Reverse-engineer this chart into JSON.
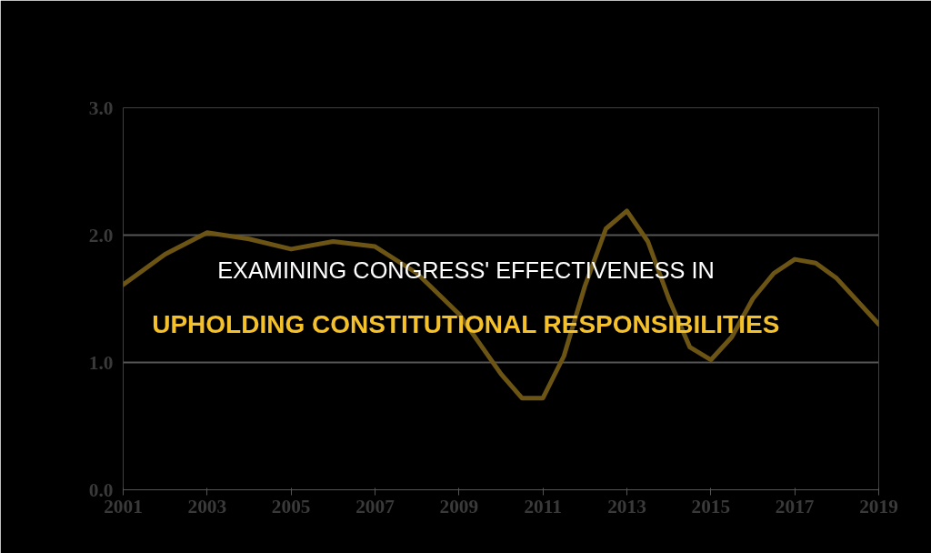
{
  "chart_data": {
    "type": "line",
    "title": "EXAMINING CONGRESS' EFFECTIVENESS IN",
    "subtitle": "UPHOLDING CONSTITUTIONAL RESPONSIBILITIES",
    "x": [
      2001,
      2002,
      2003,
      2004,
      2005,
      2006,
      2007,
      2008,
      2009,
      2010,
      2010.5,
      2011,
      2011.5,
      2012,
      2012.5,
      2013,
      2013.5,
      2014,
      2014.5,
      2015,
      2015.5,
      2016,
      2016.5,
      2017,
      2017.5,
      2018,
      2019
    ],
    "series": [
      {
        "color": "#6b5414",
        "values": [
          1.61,
          1.85,
          2.02,
          1.97,
          1.89,
          1.95,
          1.91,
          1.7,
          1.38,
          0.91,
          0.72,
          0.72,
          1.05,
          1.6,
          2.05,
          2.19,
          1.95,
          1.5,
          1.12,
          1.02,
          1.2,
          1.5,
          1.7,
          1.81,
          1.78,
          1.66,
          1.3
        ]
      }
    ],
    "xlim": [
      2001,
      2019
    ],
    "xticks": [
      2001,
      2003,
      2005,
      2007,
      2009,
      2011,
      2013,
      2015,
      2017,
      2019
    ],
    "ylim": [
      0,
      3
    ],
    "yticks": [
      {
        "value": 0,
        "label": "0.0"
      },
      {
        "value": 1,
        "label": "1.0"
      },
      {
        "value": 2,
        "label": "2.0"
      },
      {
        "value": 3,
        "label": "3.0"
      }
    ],
    "grid": "y",
    "line_style": "solid",
    "marker": "none"
  }
}
